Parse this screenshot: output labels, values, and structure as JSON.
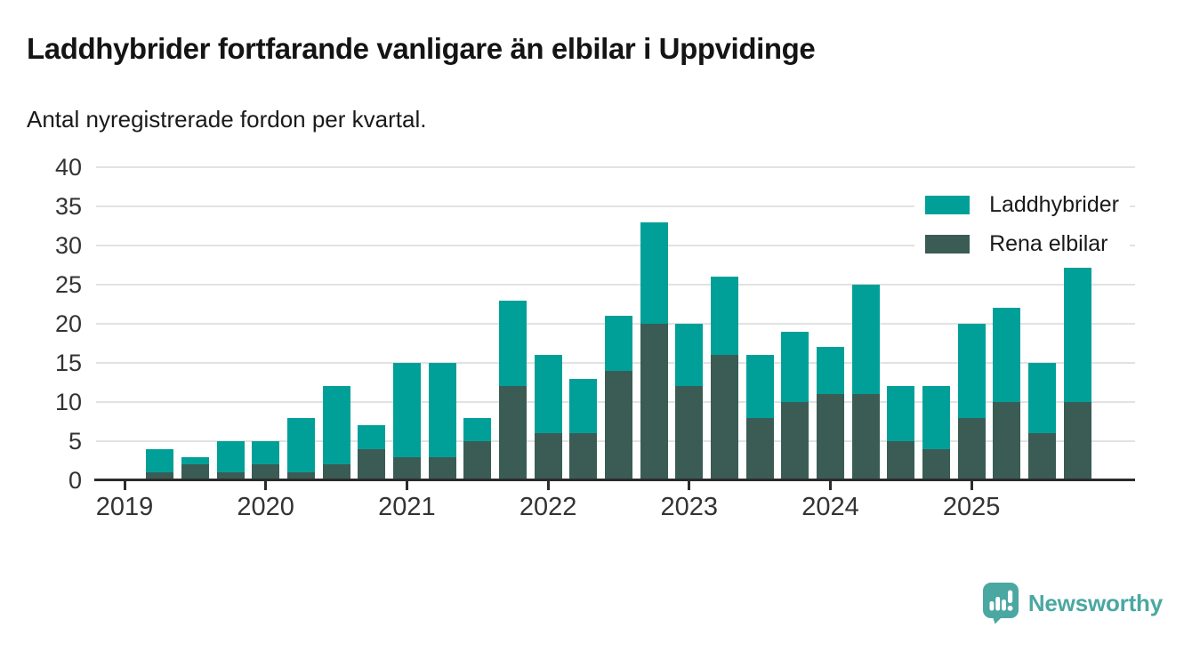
{
  "header": {
    "title": "Laddhybrider fortfarande vanligare än elbilar i Uppvidinge",
    "subtitle": "Antal nyregistrerade fordon per kvartal."
  },
  "legend": {
    "items": [
      {
        "label": "Laddhybrider",
        "color": "#00a099"
      },
      {
        "label": "Rena elbilar",
        "color": "#3a5c55"
      }
    ]
  },
  "brand": {
    "name": "Newsworthy",
    "color": "#4ba7a2",
    "icon": "newsworthy-speech-bubble-chart-icon"
  },
  "colors": {
    "laddhybrider": "#00a099",
    "rena_elbilar": "#3a5c55",
    "gridline": "#e2e2e2",
    "axis": "#2b2b2b",
    "heading_text": "#141414",
    "tick_label_text": "#333333",
    "background": "#ffffff"
  },
  "chart_data": {
    "type": "bar",
    "stacked": true,
    "title": "Laddhybrider fortfarande vanligare än elbilar i Uppvidinge",
    "subtitle": "Antal nyregistrerade fordon per kvartal.",
    "x_unit": "quarter",
    "quarters": [
      "2019-Q2",
      "2019-Q3",
      "2019-Q4",
      "2020-Q1",
      "2020-Q2",
      "2020-Q3",
      "2020-Q4",
      "2021-Q1",
      "2021-Q2",
      "2021-Q3",
      "2021-Q4",
      "2022-Q1",
      "2022-Q2",
      "2022-Q3",
      "2022-Q4",
      "2023-Q1",
      "2023-Q2",
      "2023-Q3",
      "2023-Q4",
      "2024-Q1",
      "2024-Q2",
      "2024-Q3",
      "2024-Q4",
      "2025-Q1",
      "2025-Q2",
      "2025-Q3",
      "2025-Q4"
    ],
    "series": [
      {
        "name": "Rena elbilar",
        "color": "#3a5c55",
        "values": [
          1,
          2,
          1,
          2,
          1,
          2,
          4,
          3,
          3,
          5,
          12,
          6,
          6,
          14,
          20,
          12,
          16,
          8,
          10,
          11,
          11,
          5,
          4,
          8,
          10,
          6,
          10
        ]
      },
      {
        "name": "Laddhybrider",
        "color": "#00a099",
        "values": [
          3,
          1,
          4,
          3,
          7,
          10,
          3,
          12,
          12,
          3,
          11,
          10,
          7,
          7,
          13,
          8,
          10,
          8,
          9,
          6,
          14,
          7,
          8,
          12,
          12,
          9,
          18
        ]
      }
    ],
    "totals": [
      4,
      3,
      5,
      5,
      8,
      12,
      7,
      15,
      15,
      8,
      23,
      16,
      13,
      21,
      33,
      20,
      26,
      16,
      19,
      17,
      25,
      12,
      12,
      20,
      22,
      15,
      28
    ],
    "ylim": [
      0,
      40
    ],
    "yticks": [
      0,
      5,
      10,
      15,
      20,
      25,
      30,
      35,
      40
    ],
    "year_labels": [
      "2019",
      "2020",
      "2021",
      "2022",
      "2023",
      "2024",
      "2025"
    ],
    "grid": "horizontal",
    "legend_position": "top-right"
  }
}
